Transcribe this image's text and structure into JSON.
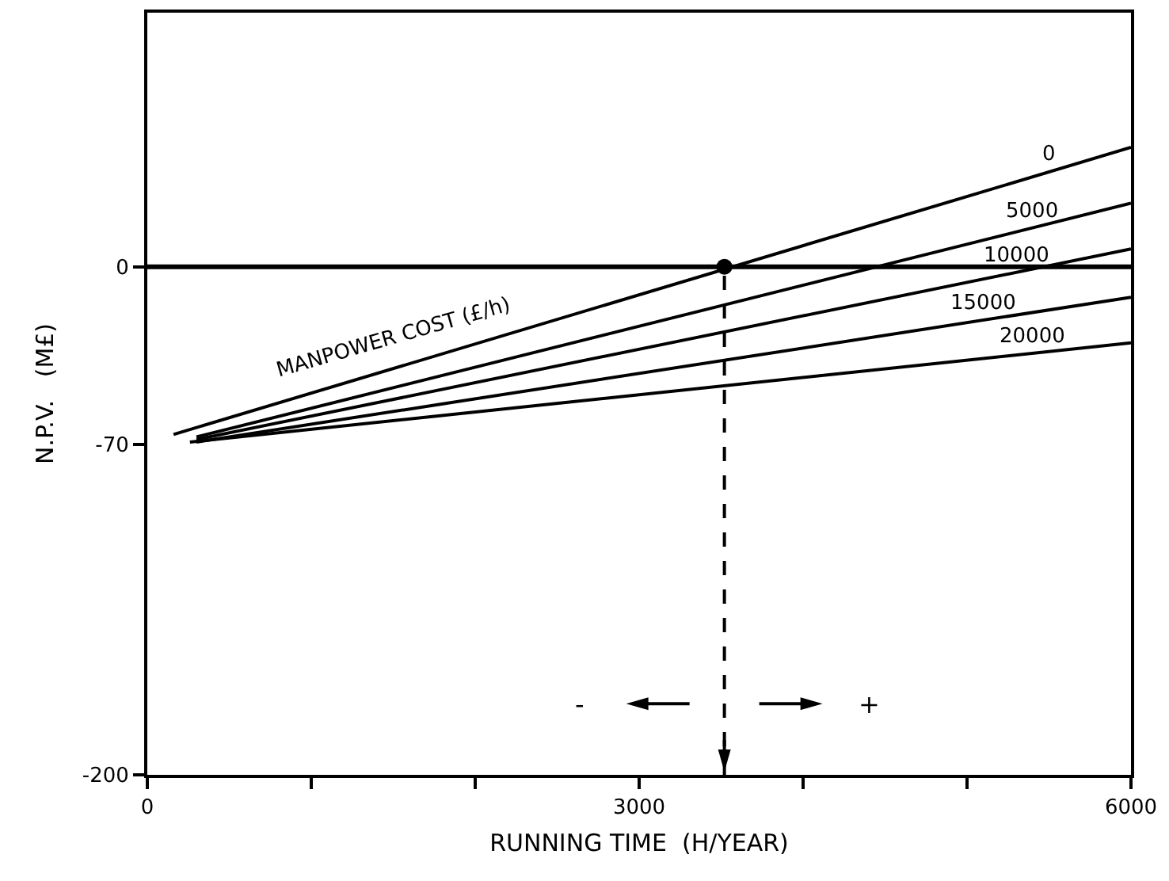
{
  "chart_data": {
    "type": "line",
    "xlabel": "RUNNING TIME  (H/YEAR)",
    "ylabel": "N.P.V.   (M£)",
    "xlim": [
      0,
      6000
    ],
    "xticks": [
      0,
      {
        "value": 1000,
        "label": null
      },
      {
        "value": 2000,
        "label": null
      },
      3000,
      {
        "value": 4000,
        "label": null
      },
      {
        "value": 5000,
        "label": null
      },
      6000
    ],
    "ylim": [
      -200,
      100
    ],
    "yticks": [
      -200,
      -70,
      0
    ],
    "grid": false,
    "legend": false,
    "line_style": "solid",
    "marker": "none",
    "series": [
      {
        "name": "0",
        "color": "#000000",
        "x": [
          160,
          6000
        ],
        "values": [
          -66,
          47
        ]
      },
      {
        "name": "5000",
        "color": "#000000",
        "x": [
          300,
          6000
        ],
        "values": [
          -67,
          25
        ]
      },
      {
        "name": "10000",
        "color": "#000000",
        "x": [
          300,
          6000
        ],
        "values": [
          -68,
          7
        ]
      },
      {
        "name": "15000",
        "color": "#000000",
        "x": [
          300,
          6000
        ],
        "values": [
          -69,
          -12
        ]
      },
      {
        "name": "20000",
        "color": "#000000",
        "x": [
          260,
          6000
        ],
        "values": [
          -69,
          -30
        ]
      },
      {
        "type": "scatter",
        "marker": "circle",
        "color": "#000000",
        "x": [
          3520
        ],
        "values": [
          0
        ]
      }
    ],
    "ref_lines": [
      {
        "axis": "y",
        "value": 0,
        "color": "#000000",
        "line_style": "solid"
      },
      {
        "axis": "x",
        "value": 3520,
        "color": "#000000",
        "line_style": "dashed"
      }
    ],
    "annotations": [
      "MANPOWER COST (£/h)",
      "-",
      "+"
    ]
  }
}
